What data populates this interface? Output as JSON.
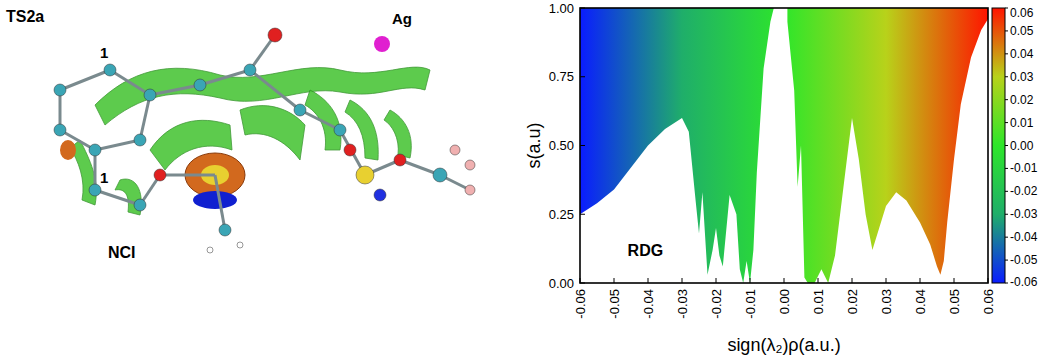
{
  "chart_data": {
    "type": "area",
    "xlabel": "sign(λ₂)ρ(a.u.)",
    "ylabel": "s(a.u)",
    "annotations": [
      {
        "text": "RDG",
        "x": -0.046,
        "y": 0.1
      }
    ],
    "x": [
      -0.06,
      -0.055,
      -0.05,
      -0.045,
      -0.04,
      -0.035,
      -0.03,
      -0.028,
      -0.026,
      -0.025,
      -0.024,
      -0.0225,
      -0.021,
      -0.02,
      -0.019,
      -0.018,
      -0.016,
      -0.014,
      -0.013,
      -0.012,
      -0.011,
      -0.01,
      -0.009,
      -0.008,
      -0.006,
      -0.004,
      -0.003,
      0,
      0.001,
      0.003,
      0.004,
      0.005,
      0.006,
      0.007,
      0.009,
      0.011,
      0.013,
      0.015,
      0.017,
      0.02,
      0.022,
      0.024,
      0.026,
      0.028,
      0.03,
      0.033,
      0.036,
      0.04,
      0.043,
      0.045,
      0.046,
      0.047,
      0.048,
      0.05,
      0.052,
      0.055,
      0.058,
      0.06
    ],
    "values": [
      0.25,
      0.29,
      0.34,
      0.42,
      0.5,
      0.56,
      0.6,
      0.55,
      0.3,
      0.18,
      0.33,
      0.03,
      0.12,
      0.2,
      0.1,
      0.06,
      0.32,
      0.25,
      0.05,
      0.0,
      0.08,
      0.0,
      0.12,
      0.4,
      0.78,
      0.95,
      1.0,
      null,
      0.95,
      0.7,
      0.35,
      0.5,
      0.02,
      0.0,
      0.0,
      0.05,
      0.0,
      0.1,
      0.3,
      0.6,
      0.45,
      0.25,
      0.12,
      0.2,
      0.28,
      0.33,
      0.3,
      0.22,
      0.14,
      0.06,
      0.03,
      0.08,
      0.22,
      0.45,
      0.65,
      0.82,
      0.92,
      0.96
    ],
    "xlim": [
      -0.06,
      0.06
    ],
    "xticks": [
      -0.06,
      -0.05,
      -0.04,
      -0.03,
      -0.02,
      -0.01,
      {
        "value": 0,
        "label": "0.00"
      },
      0.01,
      0.02,
      0.03,
      0.04,
      0.05,
      0.06
    ],
    "ylim": [
      0,
      1
    ],
    "yticks": [
      {
        "value": 0,
        "label": "0.00"
      },
      0.25,
      {
        "value": 0.5,
        "label": "0.50"
      },
      0.75,
      {
        "value": 1,
        "label": "1.00"
      }
    ],
    "grid": false,
    "colorbar": {
      "range": [
        -0.06,
        0.06
      ],
      "ticks": [
        -0.06,
        -0.05,
        -0.04,
        -0.03,
        -0.02,
        -0.01,
        {
          "value": 0,
          "label": "0.00"
        },
        0.01,
        0.02,
        0.03,
        0.04,
        0.05,
        0.06
      ],
      "colors": [
        "#0a1cff",
        "#1fae6a",
        "#2ee62a",
        "#b8d21a",
        "#ff1400"
      ]
    }
  },
  "figure": {
    "title": "TS2a",
    "labels": [
      "1",
      "1",
      "Ag"
    ],
    "caption": "NCI"
  }
}
